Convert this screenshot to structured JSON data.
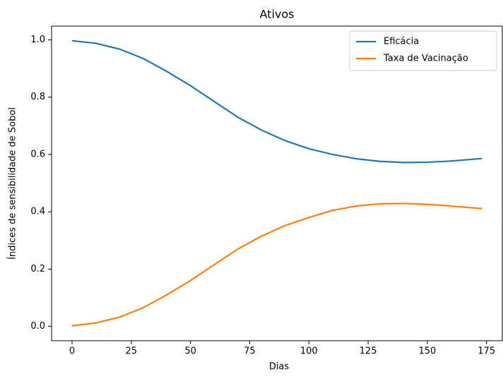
{
  "chart_data": {
    "type": "line",
    "title": "Ativos",
    "x_label": "Dias",
    "y_label": "Índices de sensibilidade de Sobol",
    "x": [
      0,
      10,
      20,
      30,
      40,
      50,
      60,
      70,
      80,
      90,
      100,
      110,
      120,
      130,
      140,
      150,
      160,
      173
    ],
    "series": [
      {
        "name": "Eficácia",
        "color": "#1f77b4",
        "values": [
          0.997,
          0.988,
          0.968,
          0.935,
          0.89,
          0.84,
          0.785,
          0.73,
          0.685,
          0.648,
          0.62,
          0.6,
          0.585,
          0.576,
          0.572,
          0.573,
          0.577,
          0.586
        ]
      },
      {
        "name": "Taxa de Vacinação",
        "color": "#ff7f0e",
        "values": [
          0.002,
          0.012,
          0.032,
          0.065,
          0.11,
          0.16,
          0.215,
          0.27,
          0.315,
          0.352,
          0.38,
          0.405,
          0.42,
          0.428,
          0.429,
          0.426,
          0.42,
          0.411
        ]
      }
    ],
    "xlim": [
      -8.65,
      181.65
    ],
    "ylim": [
      -0.05,
      1.048
    ],
    "xticks": [
      0,
      25,
      50,
      75,
      100,
      125,
      150,
      175
    ],
    "yticks": [
      {
        "value": 0,
        "label": "0.0"
      },
      {
        "value": 0.2,
        "label": "0.2"
      },
      {
        "value": 0.4,
        "label": "0.4"
      },
      {
        "value": 0.6,
        "label": "0.6"
      },
      {
        "value": 0.8,
        "label": "0.8"
      },
      {
        "value": 1,
        "label": "1.0"
      }
    ],
    "legend": "upper right"
  }
}
